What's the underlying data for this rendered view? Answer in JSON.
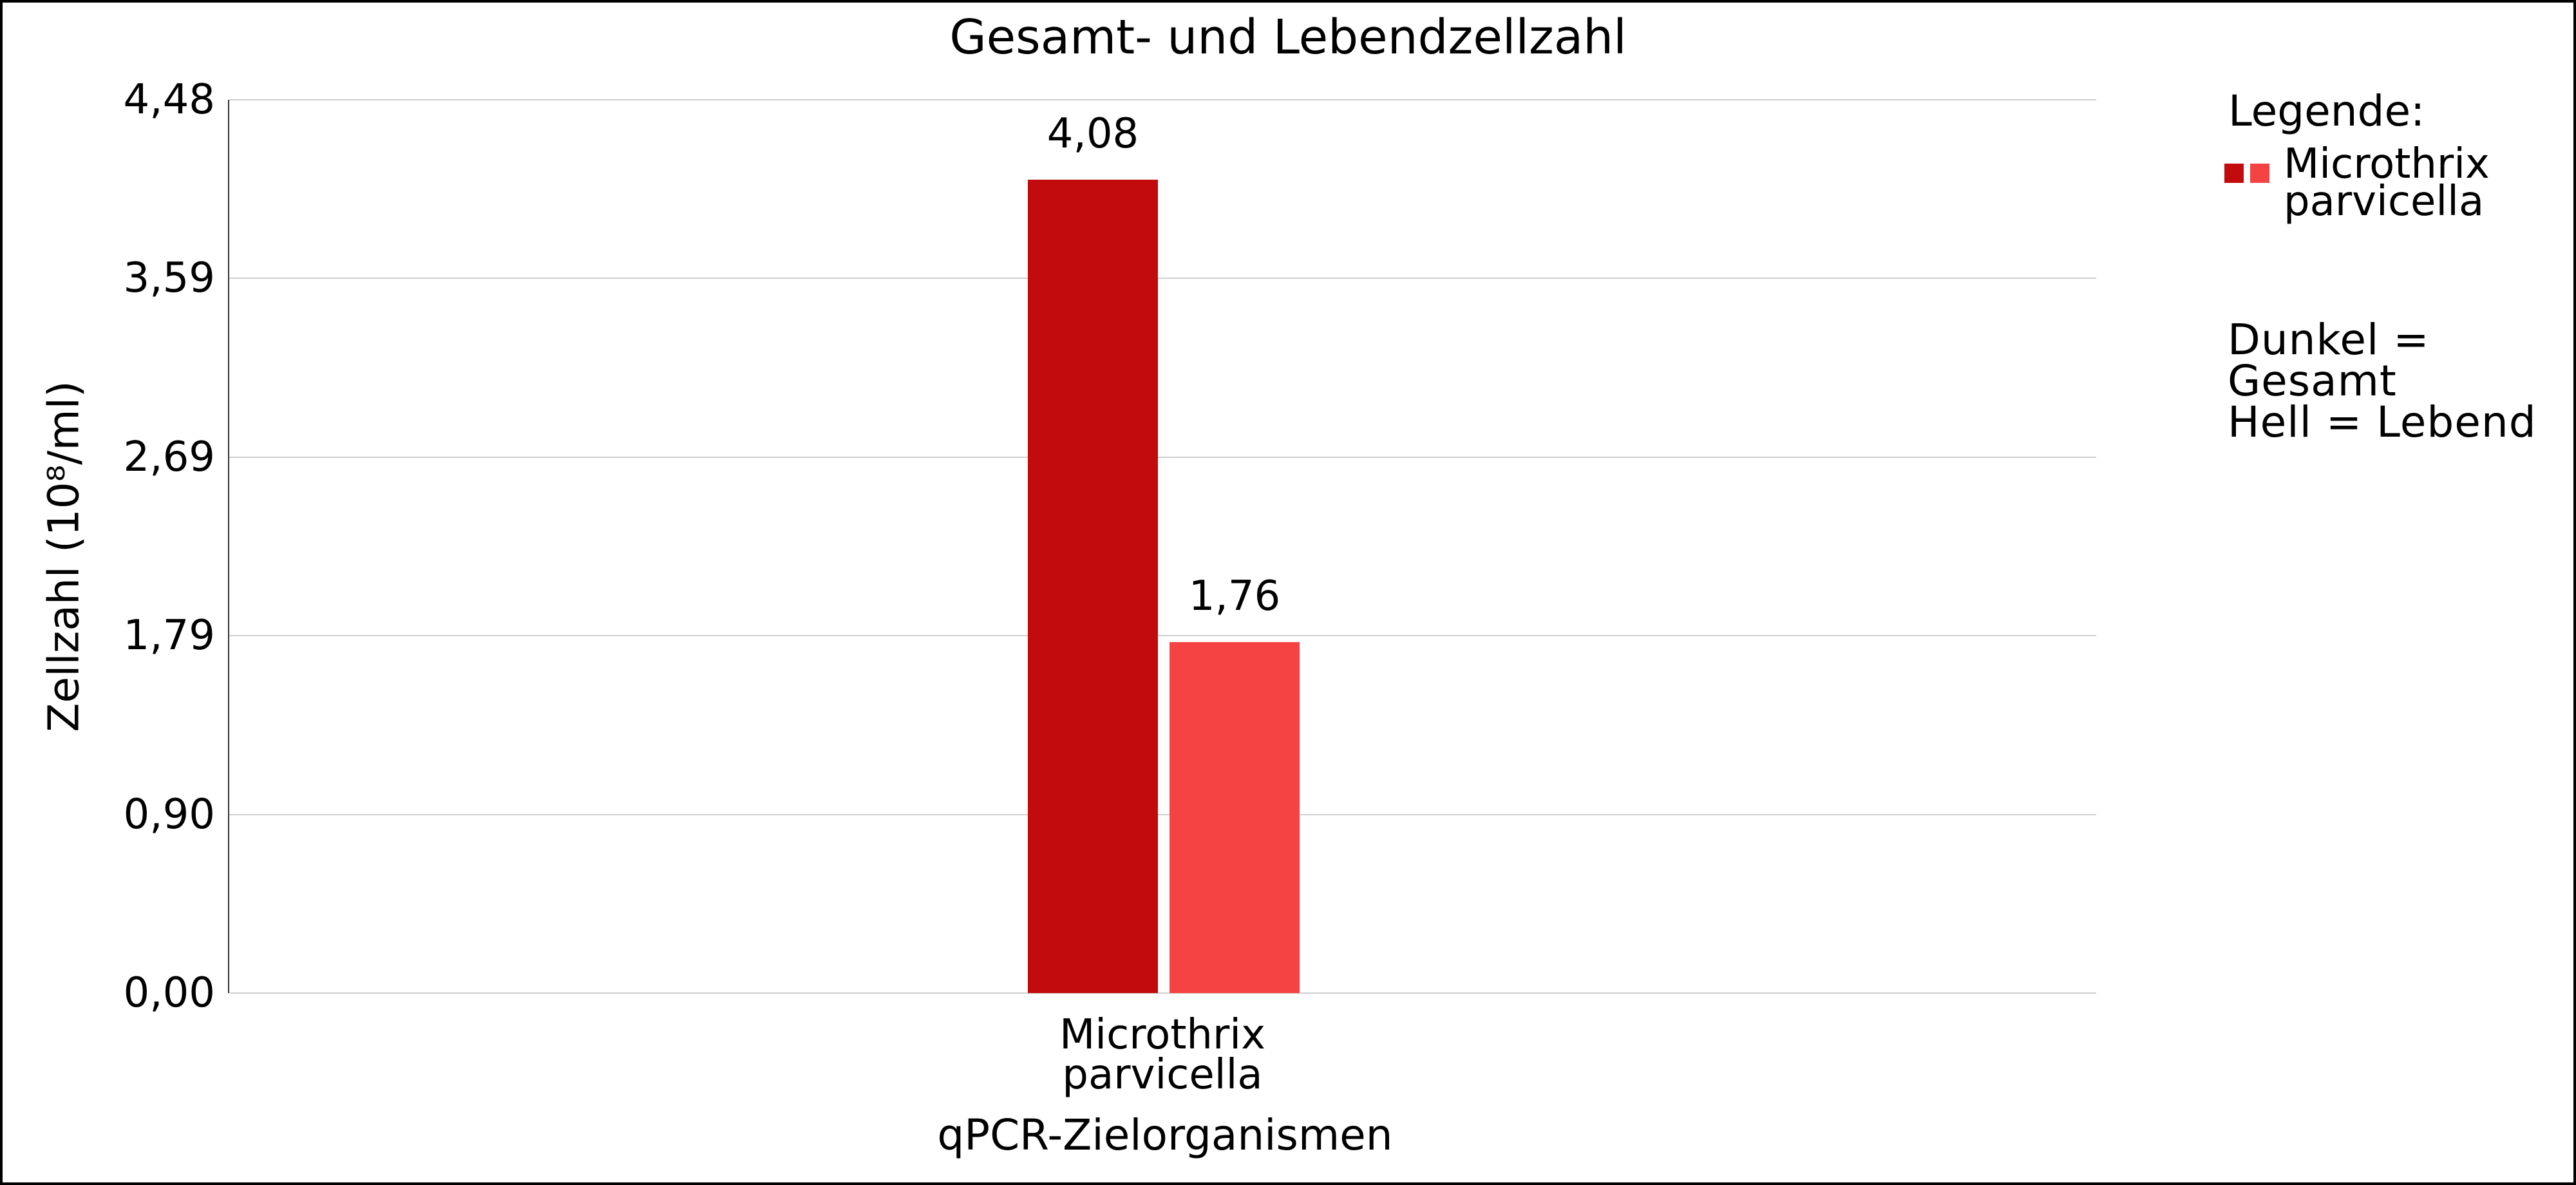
{
  "figure": {
    "background": "#ffffff",
    "border_color": "#000000"
  },
  "chart_data": {
    "type": "bar",
    "title": "Gesamt- und Lebendzellzahl",
    "xlabel": "qPCR-Zielorganismen",
    "ylabel": "Zellzahl (10⁸/ml)",
    "categories": [
      "Microthrix parvicella"
    ],
    "category_label": "Microthrix\nparvicella",
    "series": [
      {
        "name": "Gesamt",
        "values": [
          4.08
        ],
        "value_label": "4,08",
        "color": "#c20b0d"
      },
      {
        "name": "Lebend",
        "values": [
          1.76
        ],
        "value_label": "1,76",
        "color": "#f54243"
      }
    ],
    "ylim": [
      0,
      4.48
    ],
    "yticks": [
      "0,00",
      "0,90",
      "1,79",
      "2,69",
      "3,59",
      "4,48"
    ],
    "ytick_values": [
      0,
      0.896,
      1.792,
      2.688,
      3.584,
      4.48
    ],
    "grid": "horizontal",
    "gridline_color": "#cfcfcf",
    "axis_line_color": "#333333",
    "legend_position": "right"
  },
  "legend": {
    "heading": "Legende:",
    "entries": [
      {
        "label": "Microthrix\nparvicella",
        "swatch_dark_color": "#c20b0d",
        "swatch_light_color": "#f54243"
      }
    ],
    "note": "Dunkel = Gesamt\nHell = Lebend"
  }
}
